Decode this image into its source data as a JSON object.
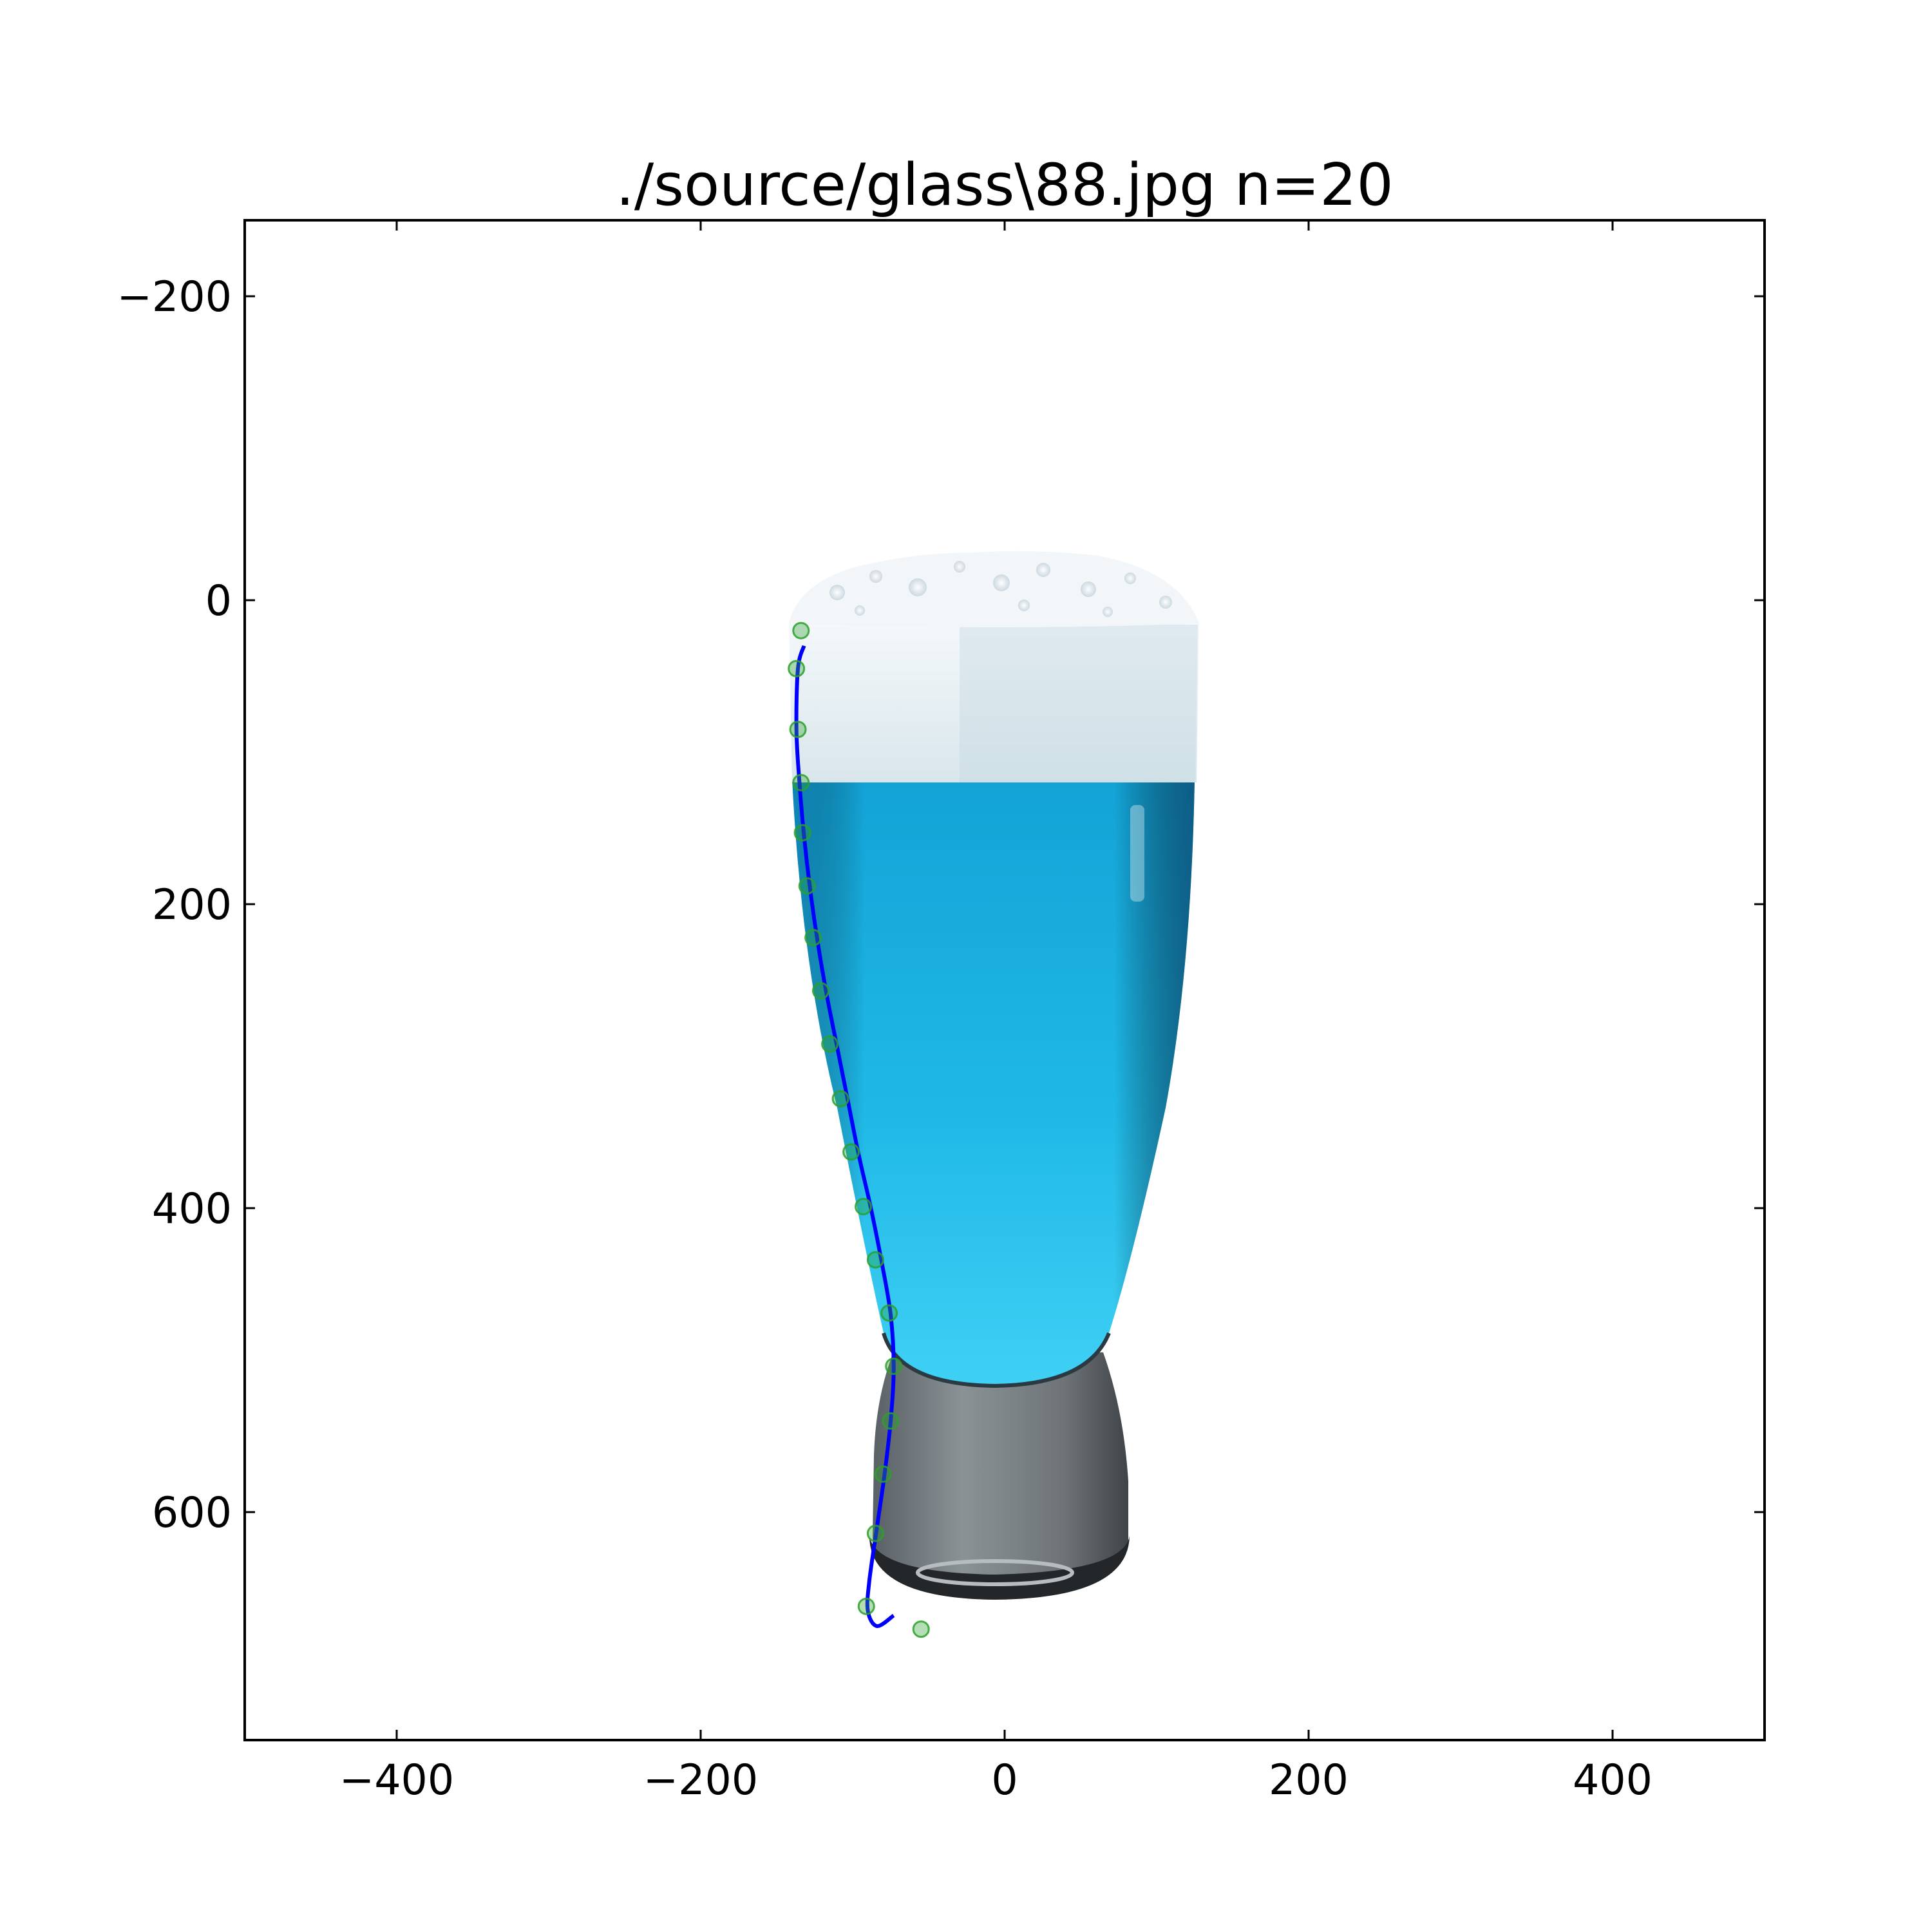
{
  "chart_data": {
    "type": "scatter",
    "title": "./source/glass\\88.jpg n=20",
    "xlabel": "",
    "ylabel": "",
    "xlim": [
      -500,
      500
    ],
    "ylim": [
      750,
      -250
    ],
    "y_axis_inverted": true,
    "grid": false,
    "legend": "none",
    "xticks": [
      -400,
      -200,
      0,
      200,
      400
    ],
    "xtick_labels": [
      "−400",
      "−200",
      "0",
      "200",
      "400"
    ],
    "yticks": [
      -200,
      0,
      200,
      400,
      600
    ],
    "ytick_labels": [
      "−200",
      "0",
      "200",
      "400",
      "600"
    ],
    "background_image": "glass of blue beer with white foam",
    "series": [
      {
        "type": "scatter",
        "color": "#2ca02c",
        "x": [
          -134,
          -137,
          -136,
          -134,
          -133,
          -130,
          -126,
          -121,
          -115,
          -108,
          -101,
          -93,
          -85,
          -76,
          -73,
          -75,
          -80,
          -85,
          -91,
          -55
        ],
        "y": [
          20,
          45,
          85,
          120,
          153,
          188,
          222,
          257,
          292,
          328,
          363,
          399,
          434,
          469,
          504,
          540,
          575,
          614,
          662,
          677
        ]
      },
      {
        "type": "line",
        "color": "#0000ff",
        "x": [
          -132,
          -136,
          -137,
          -135,
          -132,
          -128,
          -123,
          -117,
          -110,
          -103,
          -96,
          -88,
          -81,
          -75,
          -73,
          -75,
          -79,
          -84,
          -89,
          -90,
          -84,
          -73
        ],
        "y": [
          30,
          45,
          85,
          120,
          155,
          190,
          225,
          260,
          295,
          330,
          365,
          400,
          435,
          470,
          505,
          540,
          575,
          610,
          645,
          665,
          675,
          668
        ]
      }
    ]
  }
}
